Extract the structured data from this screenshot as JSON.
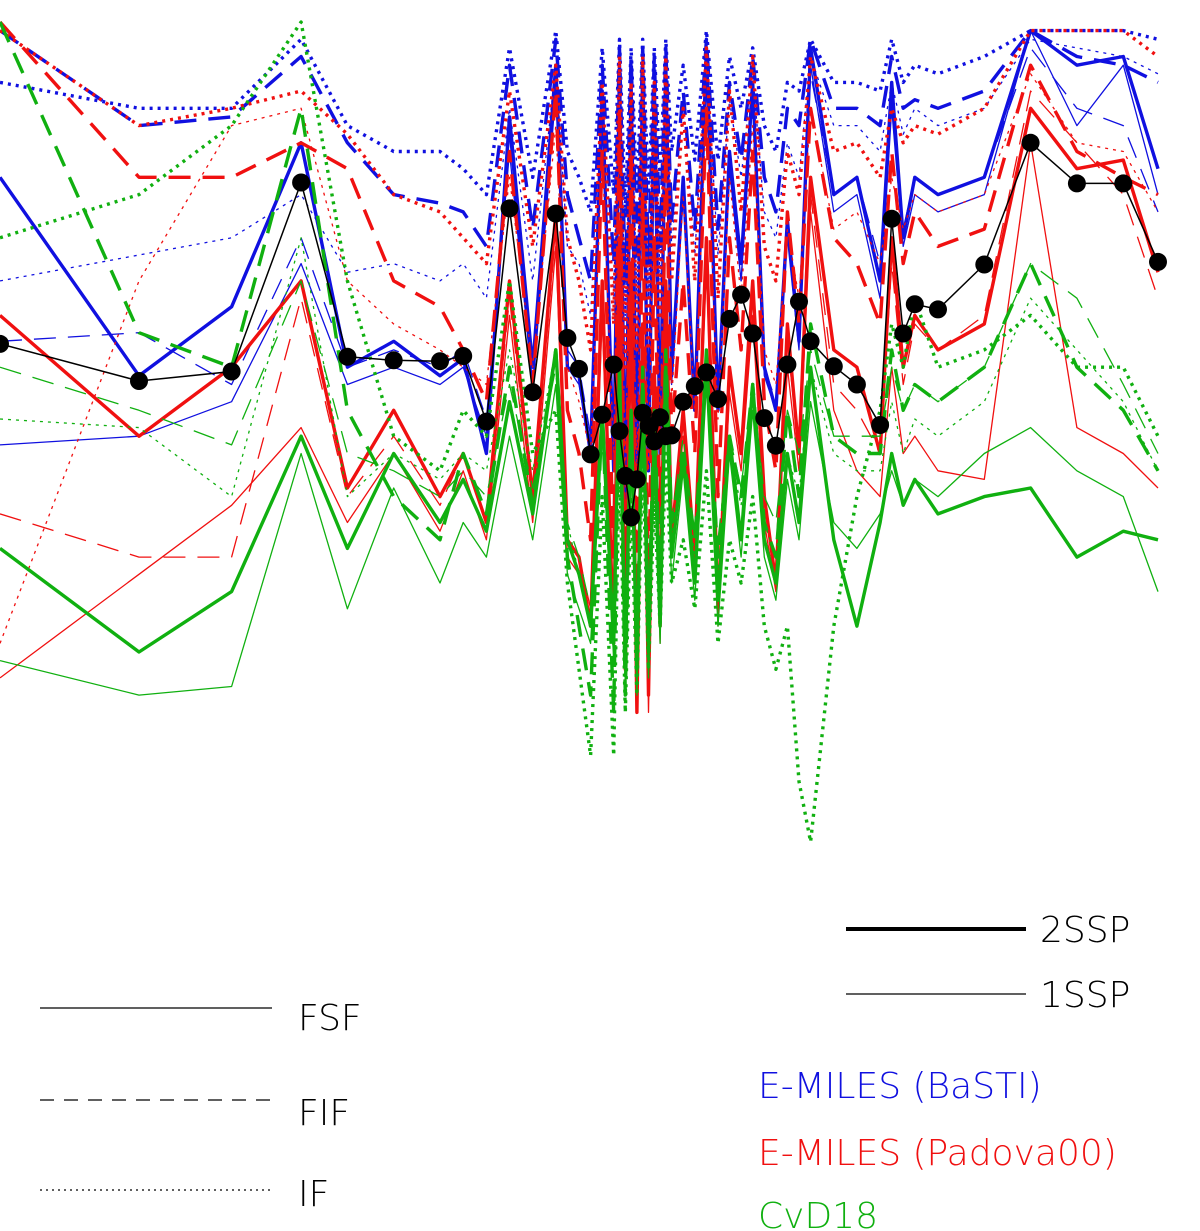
{
  "chart_data": {
    "type": "line",
    "title": "",
    "xlabel": "",
    "ylabel": "",
    "x": [
      0.0,
      0.12,
      0.2,
      0.26,
      0.3,
      0.34,
      0.38,
      0.4,
      0.42,
      0.44,
      0.46,
      0.48,
      0.49,
      0.5,
      0.51,
      0.52,
      0.53,
      0.535,
      0.54,
      0.545,
      0.55,
      0.555,
      0.56,
      0.565,
      0.57,
      0.575,
      0.58,
      0.59,
      0.6,
      0.61,
      0.62,
      0.63,
      0.64,
      0.65,
      0.66,
      0.67,
      0.68,
      0.69,
      0.7,
      0.72,
      0.74,
      0.76,
      0.77,
      0.78,
      0.79,
      0.81,
      0.85,
      0.89,
      0.93,
      0.97,
      1.0
    ],
    "xlim": [
      0,
      1
    ],
    "ylim": [
      0,
      1
    ],
    "measured": {
      "name": "",
      "color": "#000000",
      "values": [
        0.627,
        0.584,
        0.595,
        0.814,
        0.612,
        0.608,
        0.607,
        0.613,
        0.537,
        0.784,
        0.571,
        0.778,
        0.634,
        0.598,
        0.499,
        0.545,
        0.603,
        0.526,
        0.474,
        0.426,
        0.47,
        0.547,
        0.532,
        0.514,
        0.542,
        0.52,
        0.521,
        0.56,
        0.578,
        0.594,
        0.563,
        0.656,
        0.684,
        0.639,
        0.541,
        0.509,
        0.603,
        0.676,
        0.63,
        0.601,
        0.58,
        0.533,
        0.772,
        0.639,
        0.673,
        0.667,
        0.719,
        0.86,
        0.813,
        0.813,
        0.722
      ]
    },
    "series": [
      {
        "name": "E-MILES (BaSTI)",
        "fit": "FSF",
        "ssp": "2SSP",
        "color": "#1010e0",
        "values": [
          0.82,
          0.59,
          0.67,
          0.86,
          0.6,
          0.63,
          0.59,
          0.61,
          0.5,
          0.89,
          0.6,
          0.95,
          0.6,
          0.59,
          0.5,
          0.92,
          0.48,
          0.95,
          0.44,
          0.93,
          0.48,
          0.95,
          0.48,
          0.93,
          0.5,
          0.95,
          0.59,
          0.82,
          0.55,
          0.97,
          0.55,
          0.85,
          0.72,
          0.93,
          0.6,
          0.55,
          0.77,
          0.63,
          0.97,
          0.8,
          0.82,
          0.7,
          0.93,
          0.75,
          0.82,
          0.8,
          0.82,
          0.99,
          0.95,
          0.96,
          0.83
        ]
      },
      {
        "name": "E-MILES (BaSTI)",
        "fit": "FSF",
        "ssp": "1SSP",
        "color": "#1010e0",
        "values": [
          0.51,
          0.52,
          0.56,
          0.72,
          0.58,
          0.6,
          0.58,
          0.6,
          0.52,
          0.87,
          0.57,
          0.93,
          0.6,
          0.58,
          0.5,
          0.9,
          0.48,
          0.93,
          0.45,
          0.91,
          0.48,
          0.93,
          0.48,
          0.91,
          0.5,
          0.93,
          0.58,
          0.8,
          0.55,
          0.95,
          0.55,
          0.83,
          0.7,
          0.91,
          0.59,
          0.55,
          0.75,
          0.62,
          0.95,
          0.78,
          0.8,
          0.68,
          0.9,
          0.74,
          0.8,
          0.78,
          0.8,
          0.99,
          0.88,
          0.95,
          0.8
        ]
      },
      {
        "name": "E-MILES (BaSTI)",
        "fit": "FIF",
        "ssp": "2SSP",
        "color": "#1010e0",
        "values": [
          0.99,
          0.88,
          0.89,
          0.96,
          0.86,
          0.8,
          0.79,
          0.78,
          0.74,
          0.95,
          0.76,
          0.98,
          0.8,
          0.75,
          0.7,
          0.95,
          0.72,
          0.97,
          0.7,
          0.96,
          0.72,
          0.97,
          0.72,
          0.96,
          0.74,
          0.97,
          0.77,
          0.92,
          0.76,
          0.98,
          0.76,
          0.93,
          0.84,
          0.96,
          0.82,
          0.78,
          0.9,
          0.88,
          0.98,
          0.9,
          0.9,
          0.88,
          0.96,
          0.9,
          0.91,
          0.9,
          0.92,
          0.99,
          0.96,
          0.95,
          0.93
        ]
      },
      {
        "name": "E-MILES (BaSTI)",
        "fit": "FIF",
        "ssp": "1SSP",
        "color": "#1010e0",
        "values": [
          0.63,
          0.64,
          0.58,
          0.75,
          0.6,
          0.62,
          0.6,
          0.62,
          0.54,
          0.85,
          0.58,
          0.92,
          0.62,
          0.6,
          0.52,
          0.9,
          0.5,
          0.92,
          0.47,
          0.9,
          0.5,
          0.92,
          0.5,
          0.9,
          0.52,
          0.92,
          0.6,
          0.82,
          0.57,
          0.94,
          0.57,
          0.84,
          0.7,
          0.9,
          0.6,
          0.56,
          0.76,
          0.64,
          0.94,
          0.8,
          0.82,
          0.72,
          0.9,
          0.76,
          0.82,
          0.8,
          0.82,
          0.97,
          0.9,
          0.88,
          0.78
        ]
      },
      {
        "name": "E-MILES (BaSTI)",
        "fit": "IF",
        "ssp": "2SSP",
        "color": "#1010e0",
        "values": [
          0.93,
          0.9,
          0.9,
          0.98,
          0.88,
          0.85,
          0.85,
          0.83,
          0.8,
          0.97,
          0.82,
          0.99,
          0.85,
          0.82,
          0.78,
          0.97,
          0.8,
          0.98,
          0.78,
          0.97,
          0.8,
          0.98,
          0.8,
          0.97,
          0.82,
          0.98,
          0.85,
          0.95,
          0.84,
          0.99,
          0.84,
          0.96,
          0.9,
          0.97,
          0.88,
          0.85,
          0.93,
          0.92,
          0.98,
          0.93,
          0.93,
          0.92,
          0.98,
          0.93,
          0.95,
          0.94,
          0.96,
          0.99,
          0.99,
          0.99,
          0.98
        ]
      },
      {
        "name": "E-MILES (BaSTI)",
        "fit": "IF",
        "ssp": "1SSP",
        "color": "#1010e0",
        "values": [
          0.7,
          0.73,
          0.75,
          0.8,
          0.71,
          0.72,
          0.7,
          0.72,
          0.68,
          0.9,
          0.7,
          0.95,
          0.74,
          0.72,
          0.66,
          0.93,
          0.68,
          0.95,
          0.66,
          0.93,
          0.68,
          0.95,
          0.68,
          0.93,
          0.7,
          0.95,
          0.74,
          0.9,
          0.73,
          0.96,
          0.73,
          0.91,
          0.82,
          0.94,
          0.78,
          0.75,
          0.86,
          0.82,
          0.96,
          0.88,
          0.88,
          0.85,
          0.93,
          0.87,
          0.9,
          0.88,
          0.9,
          0.98,
          0.97,
          0.96,
          0.94
        ]
      },
      {
        "name": "E-MILES (Padova00)",
        "fit": "FSF",
        "ssp": "2SSP",
        "color": "#f01010",
        "values": [
          0.66,
          0.52,
          0.6,
          0.7,
          0.46,
          0.55,
          0.45,
          0.5,
          0.42,
          0.7,
          0.45,
          0.78,
          0.4,
          0.38,
          0.3,
          0.7,
          0.28,
          0.75,
          0.25,
          0.7,
          0.2,
          0.65,
          0.22,
          0.6,
          0.3,
          0.7,
          0.4,
          0.55,
          0.38,
          0.75,
          0.32,
          0.6,
          0.5,
          0.7,
          0.45,
          0.35,
          0.65,
          0.5,
          0.82,
          0.62,
          0.6,
          0.5,
          0.75,
          0.6,
          0.66,
          0.62,
          0.65,
          0.9,
          0.83,
          0.84,
          0.71
        ]
      },
      {
        "name": "E-MILES (Padova00)",
        "fit": "FSF",
        "ssp": "1SSP",
        "color": "#f01010",
        "values": [
          0.24,
          0.36,
          0.44,
          0.53,
          0.42,
          0.5,
          0.41,
          0.48,
          0.4,
          0.66,
          0.42,
          0.74,
          0.38,
          0.36,
          0.3,
          0.66,
          0.27,
          0.72,
          0.23,
          0.66,
          0.2,
          0.62,
          0.2,
          0.57,
          0.28,
          0.66,
          0.38,
          0.52,
          0.36,
          0.72,
          0.3,
          0.57,
          0.48,
          0.66,
          0.42,
          0.34,
          0.6,
          0.48,
          0.78,
          0.55,
          0.48,
          0.45,
          0.6,
          0.5,
          0.52,
          0.48,
          0.47,
          0.86,
          0.53,
          0.5,
          0.46
        ]
      },
      {
        "name": "E-MILES (Padova00)",
        "fit": "FIF",
        "ssp": "2SSP",
        "color": "#f01010",
        "values": [
          1.0,
          0.82,
          0.82,
          0.86,
          0.83,
          0.7,
          0.67,
          0.62,
          0.56,
          0.85,
          0.58,
          0.92,
          0.55,
          0.5,
          0.4,
          0.85,
          0.38,
          0.9,
          0.32,
          0.85,
          0.3,
          0.8,
          0.32,
          0.75,
          0.42,
          0.85,
          0.52,
          0.7,
          0.5,
          0.9,
          0.45,
          0.75,
          0.62,
          0.85,
          0.56,
          0.48,
          0.78,
          0.65,
          0.9,
          0.75,
          0.72,
          0.65,
          0.85,
          0.72,
          0.78,
          0.74,
          0.76,
          0.95,
          0.85,
          0.82,
          0.8
        ]
      },
      {
        "name": "E-MILES (Padova00)",
        "fit": "FIF",
        "ssp": "1SSP",
        "color": "#f01010",
        "values": [
          0.43,
          0.38,
          0.38,
          0.68,
          0.45,
          0.52,
          0.44,
          0.5,
          0.42,
          0.68,
          0.44,
          0.76,
          0.4,
          0.38,
          0.32,
          0.68,
          0.3,
          0.74,
          0.26,
          0.68,
          0.22,
          0.64,
          0.24,
          0.6,
          0.3,
          0.68,
          0.4,
          0.55,
          0.38,
          0.74,
          0.33,
          0.6,
          0.5,
          0.68,
          0.45,
          0.36,
          0.63,
          0.5,
          0.8,
          0.58,
          0.55,
          0.5,
          0.72,
          0.58,
          0.65,
          0.62,
          0.66,
          0.92,
          0.86,
          0.8,
          0.68
        ]
      },
      {
        "name": "E-MILES (Padova00)",
        "fit": "IF",
        "ssp": "2SSP",
        "color": "#f01010",
        "values": [
          0.99,
          0.88,
          0.9,
          0.92,
          0.87,
          0.8,
          0.78,
          0.75,
          0.72,
          0.92,
          0.74,
          0.95,
          0.75,
          0.7,
          0.62,
          0.93,
          0.65,
          0.96,
          0.6,
          0.93,
          0.62,
          0.96,
          0.62,
          0.93,
          0.66,
          0.96,
          0.7,
          0.9,
          0.7,
          0.97,
          0.68,
          0.92,
          0.78,
          0.96,
          0.74,
          0.7,
          0.85,
          0.8,
          0.96,
          0.85,
          0.86,
          0.82,
          0.9,
          0.86,
          0.88,
          0.87,
          0.9,
          0.99,
          0.99,
          0.99,
          0.96
        ]
      },
      {
        "name": "E-MILES (Padova00)",
        "fit": "IF",
        "ssp": "1SSP",
        "color": "#f01010",
        "values": [
          0.28,
          0.7,
          0.88,
          0.9,
          0.7,
          0.65,
          0.62,
          0.6,
          0.58,
          0.82,
          0.6,
          0.88,
          0.6,
          0.56,
          0.5,
          0.85,
          0.5,
          0.88,
          0.48,
          0.85,
          0.48,
          0.88,
          0.48,
          0.85,
          0.52,
          0.88,
          0.56,
          0.8,
          0.55,
          0.9,
          0.54,
          0.82,
          0.68,
          0.88,
          0.62,
          0.58,
          0.76,
          0.68,
          0.9,
          0.76,
          0.78,
          0.72,
          0.82,
          0.76,
          0.8,
          0.78,
          0.8,
          0.94,
          0.86,
          0.85,
          0.78
        ]
      },
      {
        "name": "CvD18",
        "fit": "FSF",
        "ssp": "2SSP",
        "color": "#10b010",
        "values": [
          0.39,
          0.27,
          0.34,
          0.52,
          0.39,
          0.5,
          0.42,
          0.47,
          0.41,
          0.56,
          0.43,
          0.62,
          0.4,
          0.36,
          0.3,
          0.55,
          0.28,
          0.6,
          0.26,
          0.55,
          0.25,
          0.58,
          0.27,
          0.52,
          0.3,
          0.6,
          0.38,
          0.5,
          0.35,
          0.62,
          0.33,
          0.52,
          0.4,
          0.58,
          0.4,
          0.35,
          0.5,
          0.42,
          0.6,
          0.4,
          0.3,
          0.42,
          0.5,
          0.44,
          0.47,
          0.43,
          0.45,
          0.46,
          0.38,
          0.41,
          0.4
        ]
      },
      {
        "name": "CvD18",
        "fit": "FSF",
        "ssp": "1SSP",
        "color": "#10b010",
        "values": [
          0.26,
          0.22,
          0.23,
          0.5,
          0.32,
          0.46,
          0.35,
          0.42,
          0.38,
          0.52,
          0.4,
          0.58,
          0.36,
          0.32,
          0.28,
          0.52,
          0.26,
          0.56,
          0.24,
          0.52,
          0.22,
          0.54,
          0.24,
          0.5,
          0.28,
          0.56,
          0.35,
          0.48,
          0.33,
          0.58,
          0.3,
          0.5,
          0.38,
          0.55,
          0.38,
          0.33,
          0.47,
          0.4,
          0.56,
          0.42,
          0.39,
          0.43,
          0.48,
          0.44,
          0.47,
          0.45,
          0.5,
          0.53,
          0.48,
          0.45,
          0.34
        ]
      },
      {
        "name": "CvD18",
        "fit": "FIF",
        "ssp": "2SSP",
        "color": "#10b010",
        "values": [
          1.0,
          0.64,
          0.6,
          0.9,
          0.55,
          0.45,
          0.4,
          0.5,
          0.43,
          0.6,
          0.44,
          0.62,
          0.38,
          0.3,
          0.22,
          0.55,
          0.2,
          0.6,
          0.22,
          0.55,
          0.25,
          0.6,
          0.3,
          0.55,
          0.35,
          0.62,
          0.42,
          0.5,
          0.4,
          0.6,
          0.38,
          0.52,
          0.45,
          0.58,
          0.42,
          0.38,
          0.55,
          0.45,
          0.65,
          0.52,
          0.5,
          0.5,
          0.62,
          0.55,
          0.58,
          0.56,
          0.6,
          0.72,
          0.6,
          0.55,
          0.48
        ]
      },
      {
        "name": "CvD18",
        "fit": "FIF",
        "ssp": "1SSP",
        "color": "#10b010",
        "values": [
          0.6,
          0.55,
          0.51,
          0.7,
          0.5,
          0.48,
          0.45,
          0.48,
          0.45,
          0.58,
          0.46,
          0.6,
          0.42,
          0.38,
          0.32,
          0.55,
          0.3,
          0.58,
          0.3,
          0.55,
          0.3,
          0.58,
          0.32,
          0.55,
          0.36,
          0.6,
          0.42,
          0.52,
          0.4,
          0.6,
          0.4,
          0.52,
          0.46,
          0.58,
          0.45,
          0.42,
          0.55,
          0.5,
          0.62,
          0.52,
          0.52,
          0.52,
          0.6,
          0.55,
          0.58,
          0.56,
          0.6,
          0.72,
          0.68,
          0.58,
          0.5
        ]
      },
      {
        "name": "CvD18",
        "fit": "IF",
        "ssp": "2SSP",
        "color": "#10b010",
        "values": [
          0.75,
          0.8,
          0.88,
          1.0,
          0.7,
          0.52,
          0.48,
          0.55,
          0.52,
          0.7,
          0.5,
          0.55,
          0.35,
          0.25,
          0.15,
          0.45,
          0.15,
          0.5,
          0.2,
          0.45,
          0.22,
          0.5,
          0.25,
          0.45,
          0.3,
          0.5,
          0.35,
          0.4,
          0.32,
          0.48,
          0.28,
          0.4,
          0.35,
          0.45,
          0.3,
          0.25,
          0.3,
          0.12,
          0.05,
          0.3,
          0.45,
          0.55,
          0.65,
          0.6,
          0.68,
          0.6,
          0.62,
          0.66,
          0.6,
          0.6,
          0.52
        ]
      },
      {
        "name": "CvD18",
        "fit": "IF",
        "ssp": "1SSP",
        "color": "#10b010",
        "values": [
          0.54,
          0.53,
          0.45,
          0.75,
          0.45,
          0.5,
          0.47,
          0.5,
          0.48,
          0.62,
          0.48,
          0.62,
          0.42,
          0.36,
          0.3,
          0.55,
          0.28,
          0.58,
          0.28,
          0.55,
          0.28,
          0.58,
          0.3,
          0.55,
          0.34,
          0.6,
          0.4,
          0.5,
          0.38,
          0.58,
          0.36,
          0.5,
          0.44,
          0.55,
          0.42,
          0.38,
          0.5,
          0.45,
          0.6,
          0.5,
          0.48,
          0.48,
          0.56,
          0.5,
          0.54,
          0.52,
          0.56,
          0.68,
          0.62,
          0.56,
          0.48
        ]
      }
    ],
    "legend": {
      "placement": "bottom",
      "ssp_entries": [
        {
          "label": "2SSP",
          "style": "thick"
        },
        {
          "label": "1SSP",
          "style": "thin"
        }
      ],
      "fit_entries": [
        {
          "label": "FSF",
          "style": "solid"
        },
        {
          "label": "FIF",
          "style": "dashed"
        },
        {
          "label": "IF",
          "style": "dotted"
        }
      ],
      "model_entries": [
        {
          "label": "E-MILES (BaSTI)",
          "color": "#1010e0"
        },
        {
          "label": "E-MILES (Padova00)",
          "color": "#f01010"
        },
        {
          "label": "CvD18",
          "color": "#10b010"
        }
      ]
    },
    "grid": false,
    "axes_visible": false
  }
}
